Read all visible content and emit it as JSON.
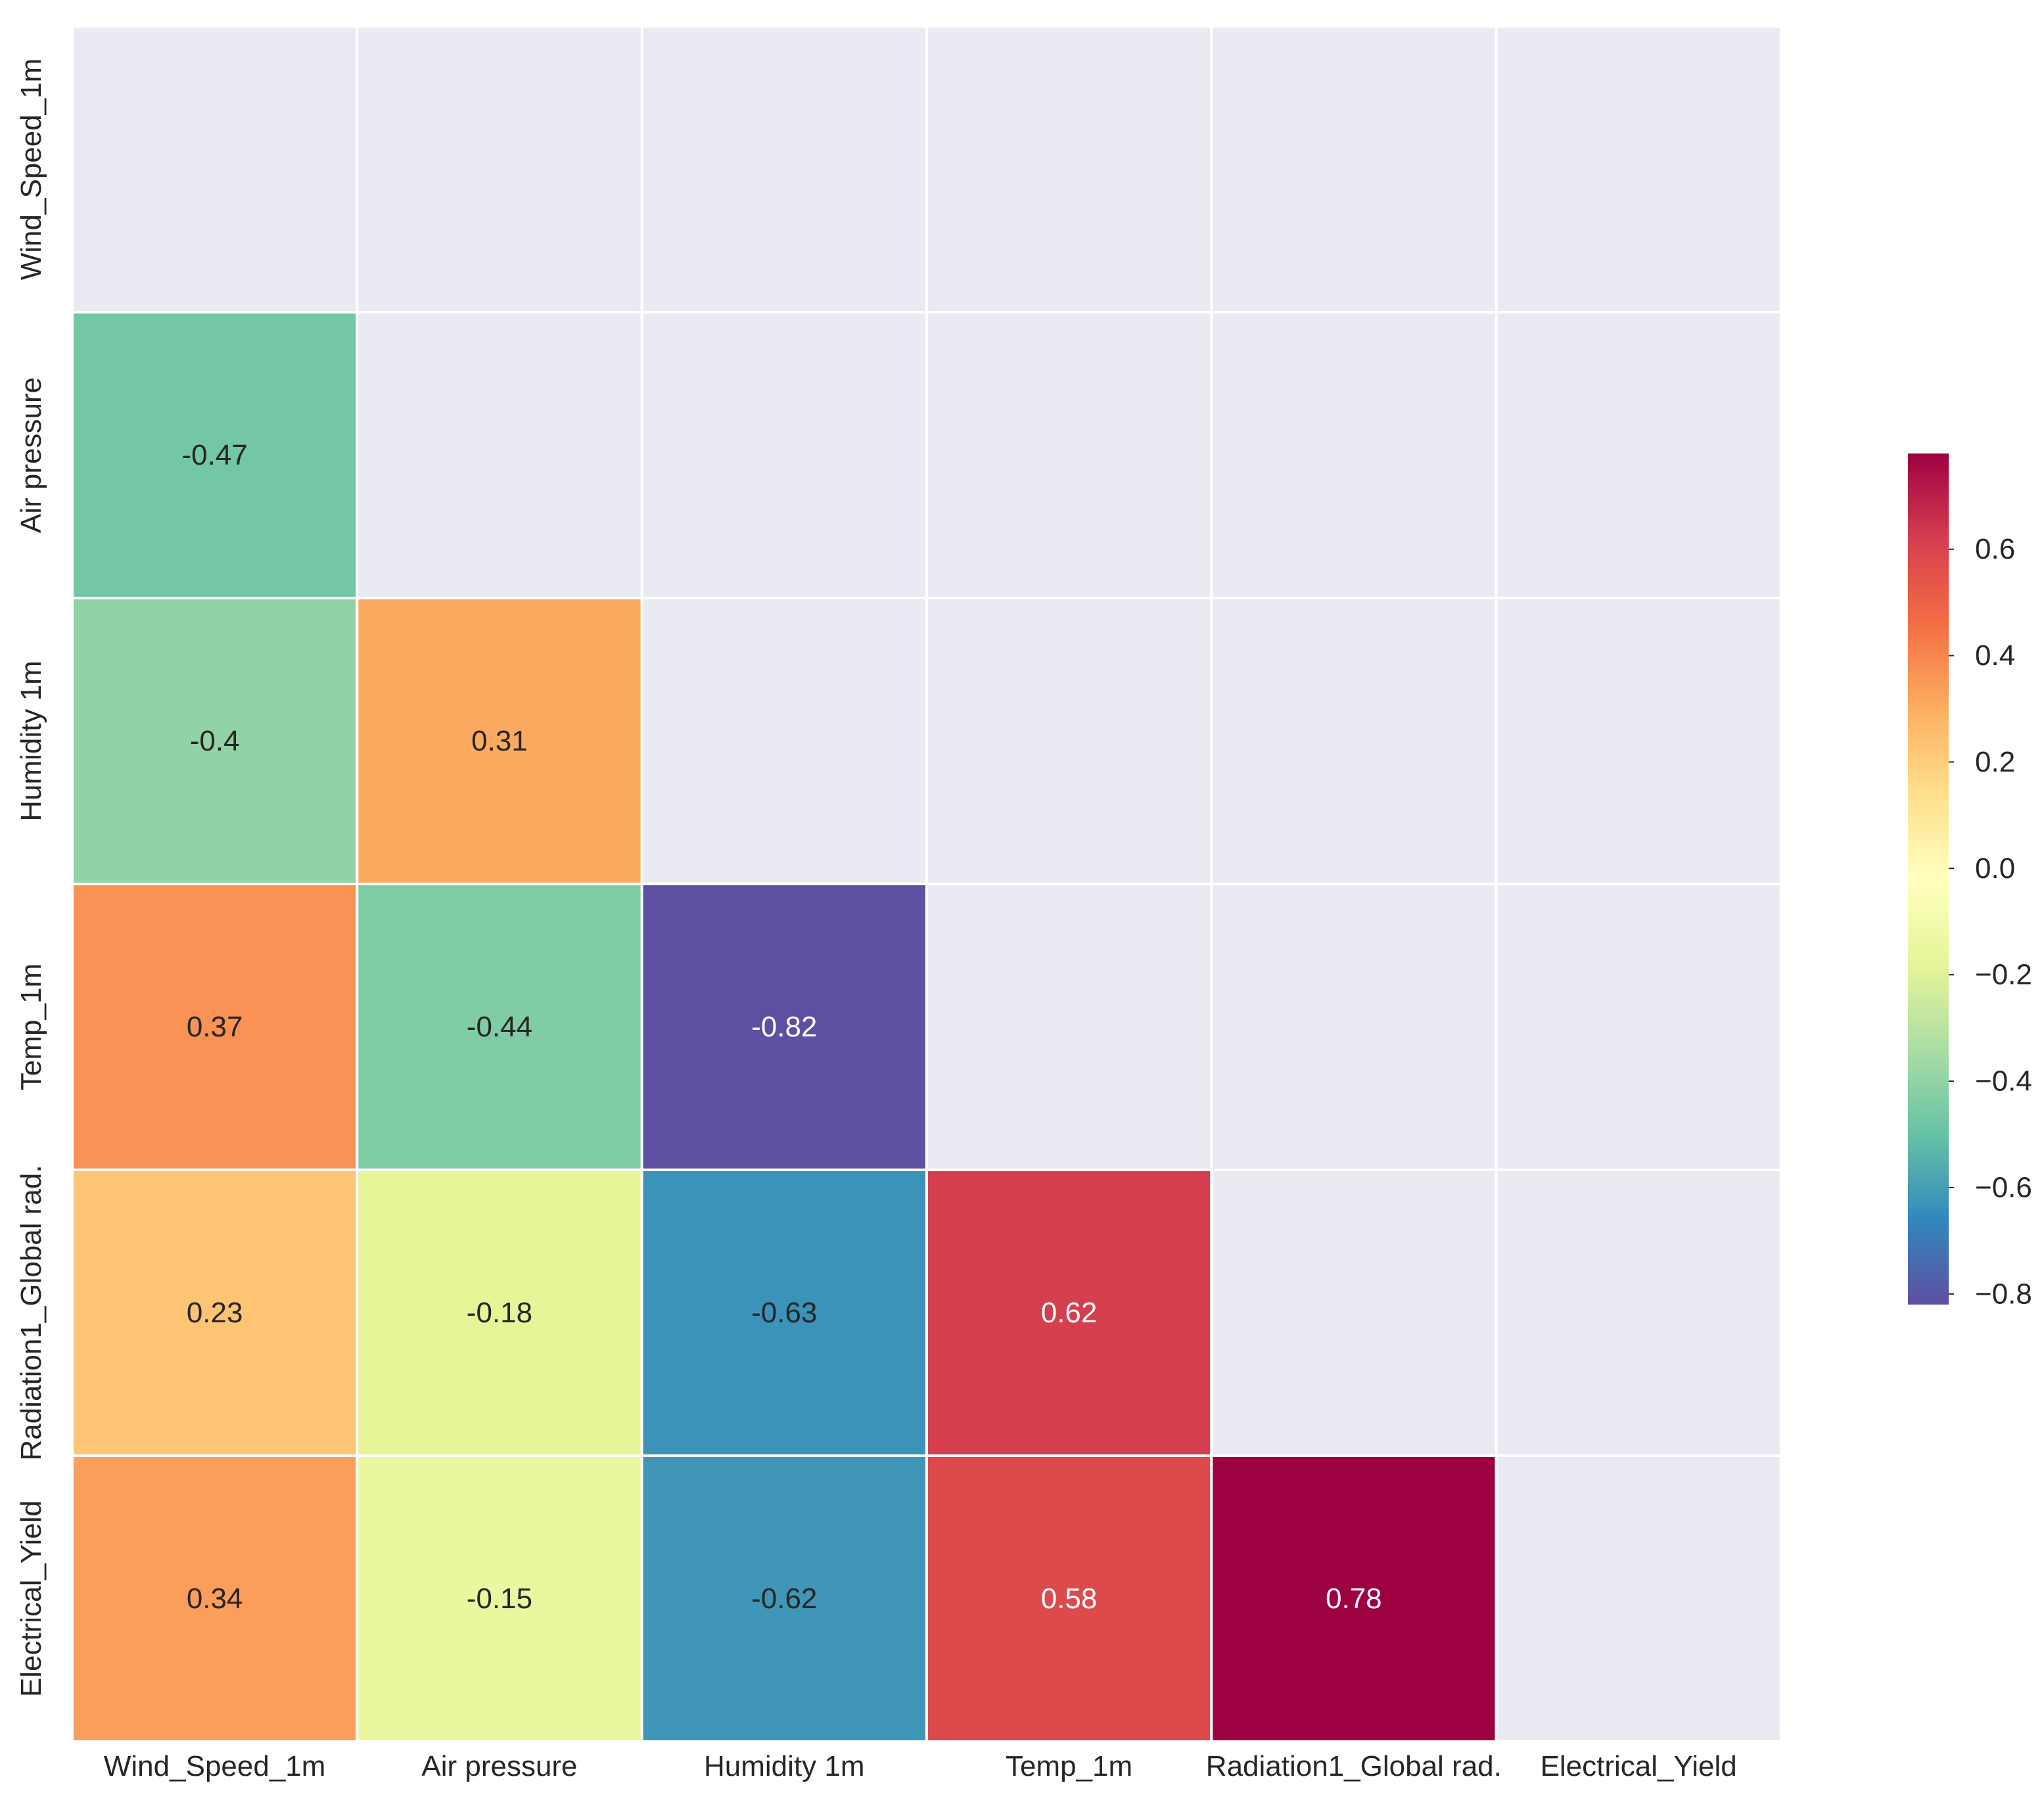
{
  "chart_data": {
    "type": "heatmap",
    "title": "",
    "xlabel": "",
    "ylabel": "",
    "mask": "upper-triangle-including-diagonal",
    "columns": [
      "Wind_Speed_1m",
      "Air pressure",
      "Humidity 1m",
      "Temp_1m",
      "Radiation1_Global rad.",
      "Electrical_Yield"
    ],
    "rows": [
      "Wind_Speed_1m",
      "Air pressure",
      "Humidity 1m",
      "Temp_1m",
      "Radiation1_Global rad.",
      "Electrical_Yield"
    ],
    "values": [
      [
        null,
        null,
        null,
        null,
        null,
        null
      ],
      [
        -0.47,
        null,
        null,
        null,
        null,
        null
      ],
      [
        -0.4,
        0.31,
        null,
        null,
        null,
        null
      ],
      [
        0.37,
        -0.44,
        -0.82,
        null,
        null,
        null
      ],
      [
        0.23,
        -0.18,
        -0.63,
        0.62,
        null,
        null
      ],
      [
        0.34,
        -0.15,
        -0.62,
        0.58,
        0.78,
        null
      ]
    ],
    "cell_labels": [
      [
        null,
        null,
        null,
        null,
        null,
        null
      ],
      [
        "-0.47",
        null,
        null,
        null,
        null,
        null
      ],
      [
        "-0.4",
        "0.31",
        null,
        null,
        null,
        null
      ],
      [
        "0.37",
        "-0.44",
        "-0.82",
        null,
        null,
        null
      ],
      [
        "0.23",
        "-0.18",
        "-0.63",
        "0.62",
        null,
        null
      ],
      [
        "0.34",
        "-0.15",
        "-0.62",
        "0.58",
        "0.78",
        null
      ]
    ],
    "colormap": "Spectral_r",
    "vmin": -0.82,
    "vmax": 0.78,
    "colorbar": {
      "ticks": [
        0.6,
        0.4,
        0.2,
        0.0,
        -0.2,
        -0.4,
        -0.6,
        -0.8
      ],
      "tick_labels": [
        "0.6",
        "0.4",
        "0.2",
        "0.0",
        "−0.2",
        "−0.4",
        "−0.6",
        "−0.8"
      ],
      "placement": "right"
    },
    "colors": {
      "background": "#eaeaf2",
      "grid": "#ffffff",
      "tick_text": "#262626",
      "annot_dark": "#262626",
      "annot_light": "#ffffff"
    }
  }
}
